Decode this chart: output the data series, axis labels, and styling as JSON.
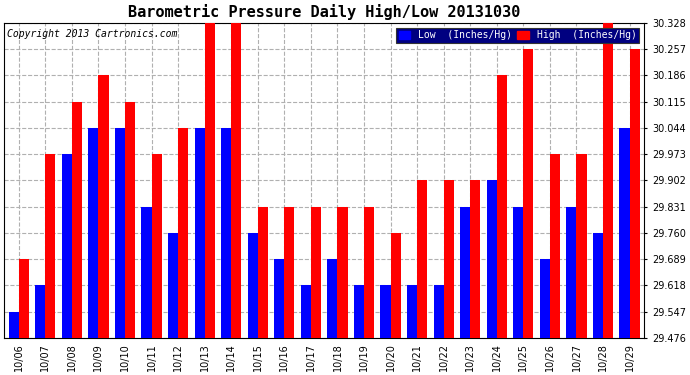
{
  "title": "Barometric Pressure Daily High/Low 20131030",
  "copyright": "Copyright 2013 Cartronics.com",
  "legend_low": "Low  (Inches/Hg)",
  "legend_high": "High  (Inches/Hg)",
  "dates": [
    "10/06",
    "10/07",
    "10/08",
    "10/09",
    "10/10",
    "10/11",
    "10/12",
    "10/13",
    "10/14",
    "10/15",
    "10/16",
    "10/17",
    "10/18",
    "10/19",
    "10/20",
    "10/21",
    "10/22",
    "10/23",
    "10/24",
    "10/25",
    "10/26",
    "10/27",
    "10/28",
    "10/29"
  ],
  "low_values": [
    29.547,
    29.618,
    29.973,
    30.044,
    30.044,
    29.831,
    29.76,
    30.044,
    30.044,
    29.76,
    29.689,
    29.618,
    29.689,
    29.618,
    29.618,
    29.618,
    29.618,
    29.831,
    29.902,
    29.831,
    29.689,
    29.831,
    29.76,
    30.044
  ],
  "high_values": [
    29.689,
    29.973,
    30.115,
    30.186,
    30.115,
    29.973,
    30.044,
    30.328,
    30.328,
    29.831,
    29.831,
    29.831,
    29.831,
    29.831,
    29.76,
    29.902,
    29.902,
    29.902,
    30.186,
    30.257,
    29.973,
    29.973,
    30.328,
    30.257
  ],
  "ymin": 29.476,
  "ymax": 30.328,
  "yticks": [
    29.476,
    29.547,
    29.618,
    29.689,
    29.76,
    29.831,
    29.902,
    29.973,
    30.044,
    30.115,
    30.186,
    30.257,
    30.328
  ],
  "bar_color_low": "#0000ff",
  "bar_color_high": "#ff0000",
  "bg_color": "#ffffff",
  "grid_color": "#b0b0b0",
  "title_fontsize": 11,
  "tick_fontsize": 7,
  "copyright_fontsize": 7
}
